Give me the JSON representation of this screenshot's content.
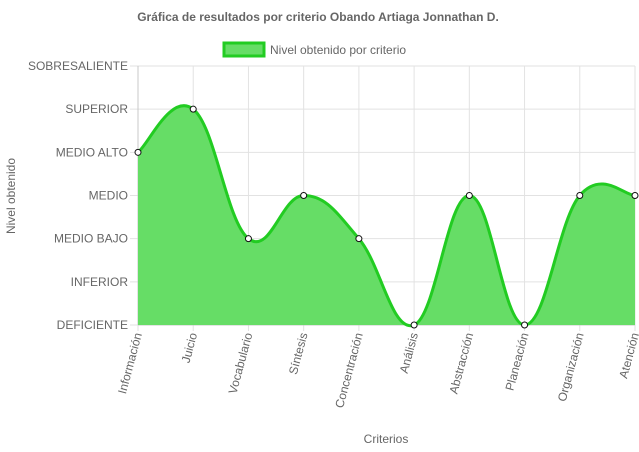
{
  "chart_data": {
    "type": "area",
    "title": "Gráfica de resultados por criterio Obando Artiaga Jonnathan D.",
    "xlabel": "Criterios",
    "ylabel": "Nivel obtenido",
    "levels": [
      "DEFICIENTE",
      "INFERIOR",
      "MEDIO BAJO",
      "MEDIO",
      "MEDIO ALTO",
      "SUPERIOR",
      "SOBRESALIENTE"
    ],
    "ylim": [
      0,
      6
    ],
    "categories": [
      "Información",
      "Juicio",
      "Vocabulario",
      "Síntesis",
      "Concentración",
      "Análisis",
      "Abstracción",
      "Planeación",
      "Organización",
      "Atención"
    ],
    "series": [
      {
        "name": "Nivel obtenido por criterio",
        "values": [
          4,
          5,
          2,
          3,
          2,
          0,
          3,
          0,
          3,
          3
        ],
        "fill_color": "#66dd66",
        "line_color": "#22cc22"
      }
    ],
    "grid": true,
    "legend_position": "top"
  }
}
